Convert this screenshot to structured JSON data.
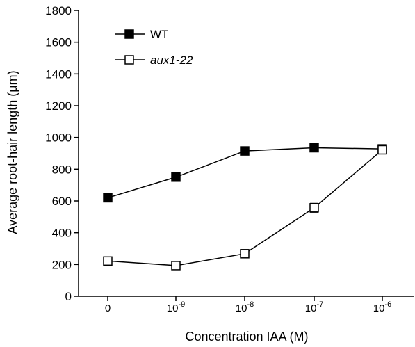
{
  "chart_data": {
    "type": "line",
    "xlabel": "Concentration IAA (M)",
    "ylabel": "Average root-hair length (μm)",
    "categories": [
      {
        "base": "0",
        "exp": ""
      },
      {
        "base": "10",
        "exp": "-9"
      },
      {
        "base": "10",
        "exp": "-8"
      },
      {
        "base": "10",
        "exp": "-7"
      },
      {
        "base": "10",
        "exp": "-6"
      }
    ],
    "ylim": [
      0,
      1800
    ],
    "yticks": [
      "0",
      "200",
      "400",
      "600",
      "800",
      "1000",
      "1200",
      "1400",
      "1600",
      "1800"
    ],
    "grid": false,
    "legend_position": "top-left",
    "series": [
      {
        "name": "WT",
        "marker": "filled-square",
        "values": [
          620,
          750,
          915,
          935,
          928
        ],
        "errors": [
          10,
          10,
          10,
          12,
          25
        ]
      },
      {
        "name": "aux1-22",
        "marker": "open-square",
        "values": [
          222,
          193,
          268,
          557,
          922
        ],
        "errors": [
          10,
          10,
          10,
          28,
          25
        ]
      }
    ],
    "colors": {
      "line": "#000000",
      "open_marker_fill": "#ffffff"
    }
  }
}
